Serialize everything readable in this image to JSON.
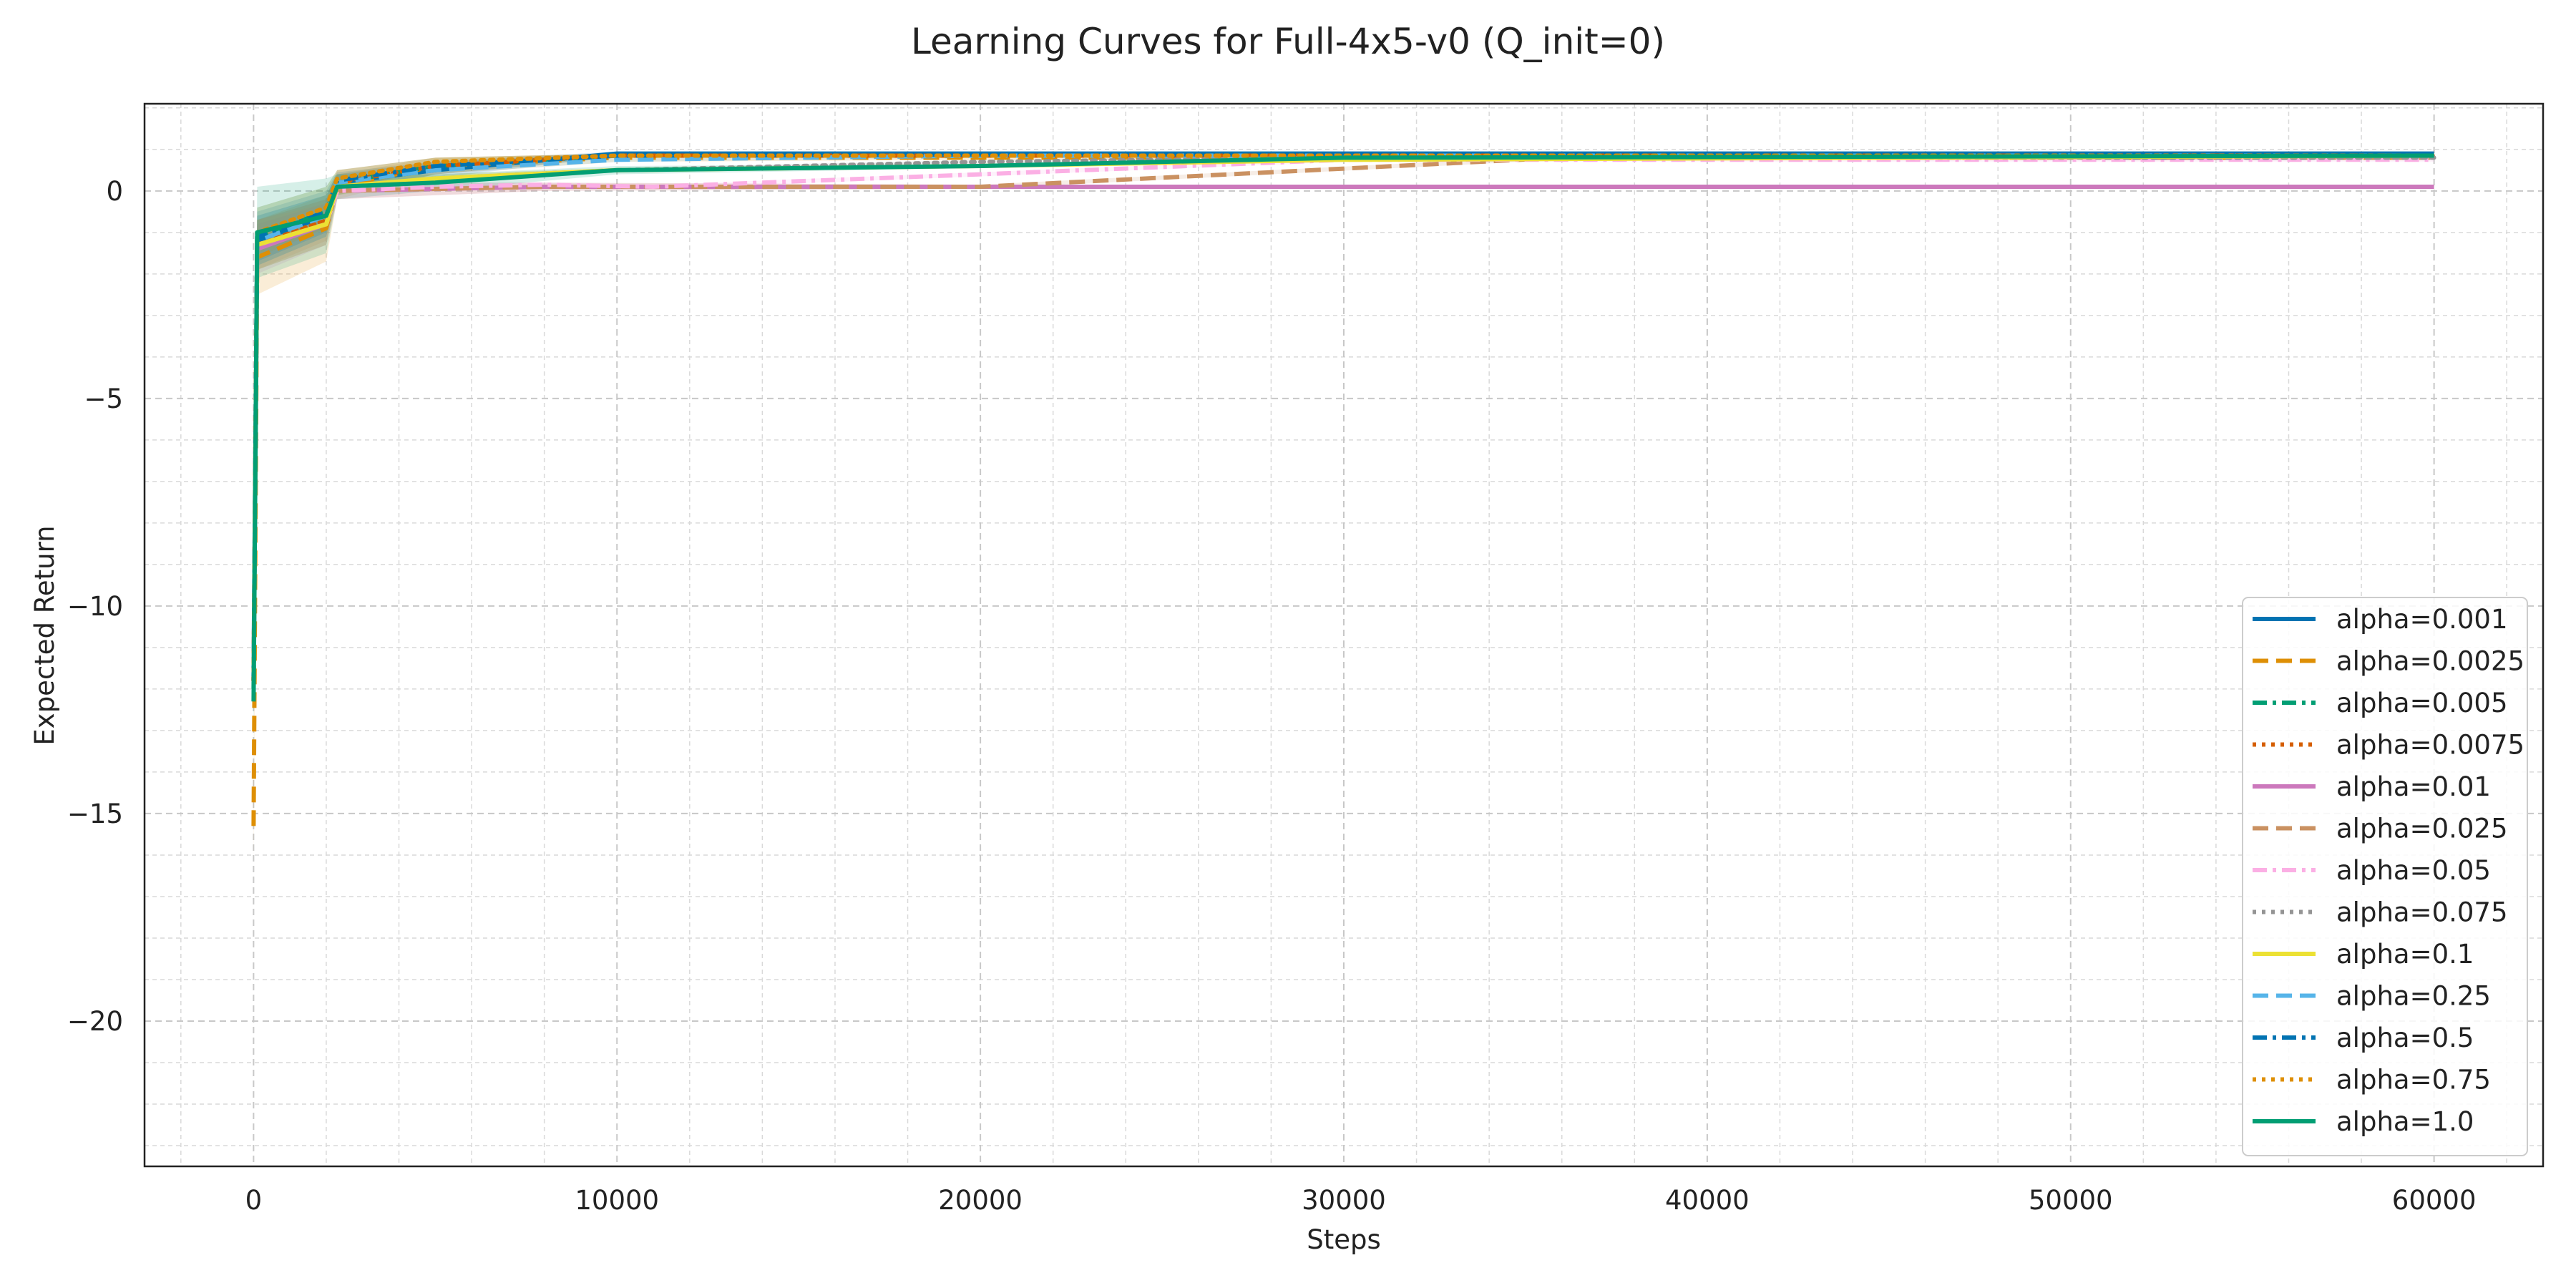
{
  "chart_data": {
    "type": "line",
    "title": "Learning Curves for Full-4x5-v0 (Q_init=0)",
    "xlabel": "Steps",
    "ylabel": "Expected Return",
    "xlim": [
      -3000,
      63000
    ],
    "ylim": [
      -23.5,
      2.1
    ],
    "xticks": [
      0,
      10000,
      20000,
      30000,
      40000,
      50000,
      60000
    ],
    "yticks": [
      0,
      -5,
      -10,
      -15,
      -20
    ],
    "ytick_labels": [
      "0",
      "−5",
      "−10",
      "−15",
      "−20"
    ],
    "grid": true,
    "legend_position": "lower right",
    "series": [
      {
        "name": "alpha=0.001",
        "color": "#0173b2",
        "dash": "solid",
        "x": [
          0,
          100,
          2000,
          2300,
          5000,
          10000,
          20000,
          30000,
          60000
        ],
        "y": [
          -11.5,
          -1.2,
          -0.6,
          0.2,
          0.5,
          0.9,
          0.9,
          0.9,
          0.9
        ],
        "band": [
          0.6,
          0.6,
          0.5,
          0.2,
          0.2,
          0.05,
          0.05,
          0.05,
          0.05
        ]
      },
      {
        "name": "alpha=0.0025",
        "color": "#de8f05",
        "dash": "dashed",
        "x": [
          0,
          100,
          2000,
          2300,
          5000,
          10000,
          20000,
          30000,
          60000
        ],
        "y": [
          -15.3,
          -1.6,
          -0.9,
          0.1,
          0.6,
          0.8,
          0.8,
          0.8,
          0.8
        ],
        "band": [
          0.9,
          0.9,
          0.8,
          0.3,
          0.2,
          0.1,
          0.05,
          0.05,
          0.05
        ]
      },
      {
        "name": "alpha=0.005",
        "color": "#029e73",
        "dash": "dashdot",
        "x": [
          0,
          100,
          2000,
          2300,
          5000,
          10000,
          20000,
          30000,
          60000
        ],
        "y": [
          -12.0,
          -1.1,
          -0.5,
          0.2,
          0.6,
          0.85,
          0.85,
          0.85,
          0.85
        ],
        "band": [
          0.7,
          0.7,
          0.6,
          0.3,
          0.2,
          0.05,
          0.05,
          0.05,
          0.05
        ]
      },
      {
        "name": "alpha=0.0075",
        "color": "#d55e00",
        "dash": "dotted",
        "x": [
          0,
          100,
          2000,
          2300,
          5000,
          10000,
          20000,
          30000,
          60000
        ],
        "y": [
          -11.8,
          -1.3,
          -0.7,
          0.2,
          0.6,
          0.85,
          0.85,
          0.85,
          0.85
        ],
        "band": [
          0.6,
          0.6,
          0.5,
          0.3,
          0.2,
          0.05,
          0.05,
          0.05,
          0.05
        ]
      },
      {
        "name": "alpha=0.01",
        "color": "#cc78bc",
        "dash": "solid",
        "x": [
          0,
          100,
          2000,
          2300,
          8000,
          20000,
          40000,
          60000
        ],
        "y": [
          -11.8,
          -1.4,
          -0.8,
          0.0,
          0.1,
          0.1,
          0.1,
          0.1
        ],
        "band": [
          0.6,
          0.6,
          0.5,
          0.2,
          0.1,
          0.05,
          0.05,
          0.05
        ]
      },
      {
        "name": "alpha=0.025",
        "color": "#ca9161",
        "dash": "dashed",
        "x": [
          0,
          100,
          2000,
          2300,
          8000,
          20000,
          36000,
          60000
        ],
        "y": [
          -11.8,
          -1.3,
          -0.8,
          0.0,
          0.1,
          0.1,
          0.8,
          0.8
        ],
        "band": [
          0.6,
          0.6,
          0.5,
          0.2,
          0.1,
          0.05,
          0.05,
          0.05
        ]
      },
      {
        "name": "alpha=0.05",
        "color": "#fbafe4",
        "dash": "dashdot",
        "x": [
          0,
          100,
          2000,
          2300,
          5000,
          8000,
          11000,
          20000,
          30000,
          60000
        ],
        "y": [
          -11.8,
          -1.3,
          -0.8,
          0.0,
          0.1,
          0.15,
          0.1,
          0.4,
          0.75,
          0.75
        ],
        "band": [
          0.6,
          0.6,
          0.5,
          0.2,
          0.1,
          0.05,
          0.05,
          0.05,
          0.05,
          0.05
        ]
      },
      {
        "name": "alpha=0.075",
        "color": "#949494",
        "dash": "dotted",
        "x": [
          0,
          100,
          2000,
          2300,
          5000,
          10000,
          20000,
          30000,
          60000
        ],
        "y": [
          -11.8,
          -1.3,
          -0.8,
          0.1,
          0.3,
          0.5,
          0.7,
          0.8,
          0.8
        ],
        "band": [
          0.6,
          0.6,
          0.5,
          0.2,
          0.1,
          0.05,
          0.05,
          0.05,
          0.05
        ]
      },
      {
        "name": "alpha=0.1",
        "color": "#ece133",
        "dash": "solid",
        "x": [
          0,
          100,
          2000,
          2300,
          5000,
          10000,
          20000,
          30000,
          60000
        ],
        "y": [
          -11.8,
          -1.3,
          -0.8,
          0.1,
          0.3,
          0.5,
          0.6,
          0.75,
          0.85
        ],
        "band": [
          0.6,
          0.6,
          0.5,
          0.2,
          0.1,
          0.05,
          0.05,
          0.05,
          0.05
        ]
      },
      {
        "name": "alpha=0.25",
        "color": "#56b4e9",
        "dash": "dashed",
        "x": [
          0,
          100,
          2000,
          2300,
          5000,
          10000,
          20000,
          30000,
          60000
        ],
        "y": [
          -11.8,
          -1.2,
          -0.6,
          0.2,
          0.5,
          0.75,
          0.85,
          0.85,
          0.85
        ],
        "band": [
          0.6,
          0.6,
          0.5,
          0.2,
          0.1,
          0.05,
          0.05,
          0.05,
          0.05
        ]
      },
      {
        "name": "alpha=0.5",
        "color": "#0173b2",
        "dash": "dashdot",
        "x": [
          0,
          100,
          2000,
          2300,
          5000,
          10000,
          20000,
          30000,
          60000
        ],
        "y": [
          -11.8,
          -1.1,
          -0.5,
          0.25,
          0.6,
          0.85,
          0.88,
          0.88,
          0.88
        ],
        "band": [
          0.6,
          0.6,
          0.5,
          0.2,
          0.1,
          0.05,
          0.05,
          0.05,
          0.05
        ]
      },
      {
        "name": "alpha=0.75",
        "color": "#de8f05",
        "dash": "dotted",
        "x": [
          0,
          100,
          2000,
          2300,
          5000,
          10000,
          20000,
          30000,
          60000
        ],
        "y": [
          -11.8,
          -1.0,
          -0.4,
          0.3,
          0.7,
          0.85,
          0.85,
          0.85,
          0.85
        ],
        "band": [
          0.6,
          0.6,
          0.5,
          0.2,
          0.1,
          0.05,
          0.05,
          0.05,
          0.05
        ]
      },
      {
        "name": "alpha=1.0",
        "color": "#029e73",
        "dash": "solid",
        "x": [
          0,
          100,
          2000,
          2300,
          5000,
          10000,
          20000,
          30000,
          60000
        ],
        "y": [
          -12.3,
          -1.0,
          -0.6,
          0.1,
          0.2,
          0.5,
          0.6,
          0.8,
          0.85
        ],
        "band": [
          1.1,
          1.1,
          0.9,
          0.3,
          0.2,
          0.1,
          0.05,
          0.05,
          0.05
        ]
      }
    ]
  }
}
